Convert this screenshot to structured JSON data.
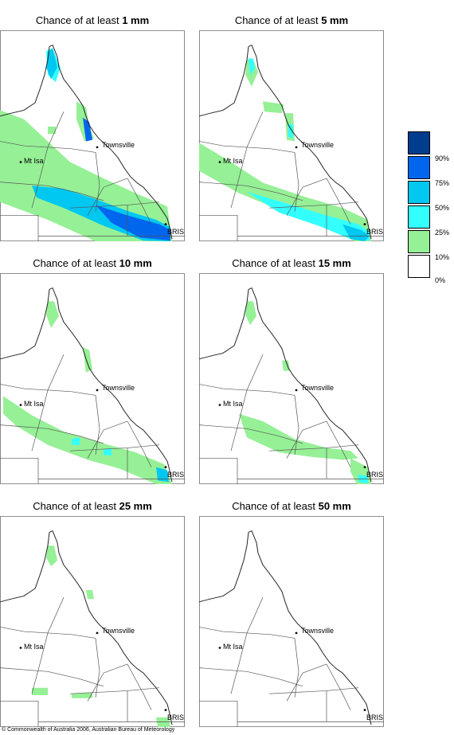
{
  "panels": [
    {
      "title_prefix": "Chance of at least",
      "threshold": "1 mm"
    },
    {
      "title_prefix": "Chance of at least",
      "threshold": "5 mm"
    },
    {
      "title_prefix": "Chance of at least",
      "threshold": "10 mm"
    },
    {
      "title_prefix": "Chance of at least",
      "threshold": "15 mm"
    },
    {
      "title_prefix": "Chance of at least",
      "threshold": "25 mm"
    },
    {
      "title_prefix": "Chance of at least",
      "threshold": "50 mm"
    }
  ],
  "places": {
    "townsville": "Townsville",
    "mt_isa": "Mt Isa",
    "brisbane": "BRIS"
  },
  "legend": {
    "colors": [
      "#003d8f",
      "#0066ee",
      "#00c8f0",
      "#33ffff",
      "#96f096",
      "#ffffff"
    ],
    "labels": [
      "90%",
      "75%",
      "50%",
      "25%",
      "10%",
      "0%"
    ]
  },
  "footer": "© Commonwealth of Australia 2006, Australian Bureau of Meteorology"
}
